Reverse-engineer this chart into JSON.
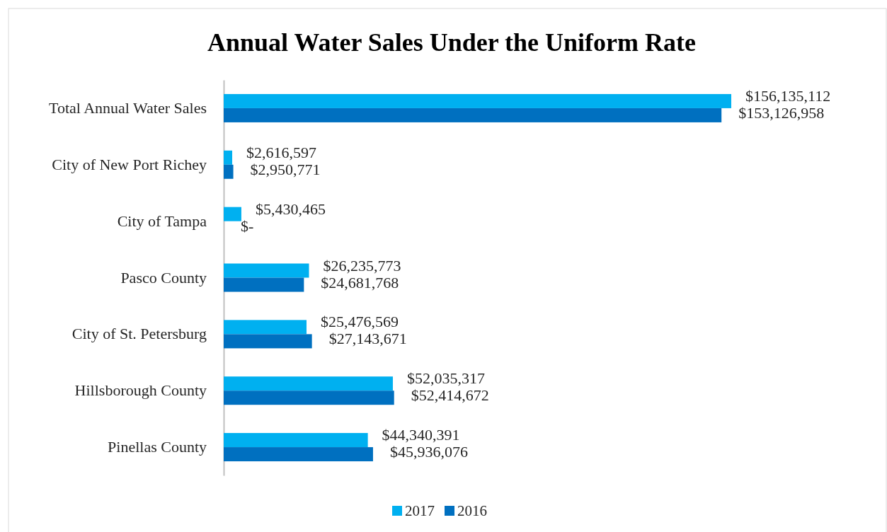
{
  "chart_data": {
    "type": "bar",
    "orientation": "horizontal",
    "title": "Annual Water Sales Under the Uniform Rate",
    "categories": [
      "Total Annual Water Sales",
      "City of New Port Richey",
      "City of Tampa",
      "Pasco County",
      "City of St. Petersburg",
      "Hillsborough County",
      "Pinellas County"
    ],
    "series": [
      {
        "name": "2017",
        "color": "#00b0f0",
        "values": [
          156135112,
          2616597,
          5430465,
          26235773,
          25476569,
          52035317,
          44340391
        ],
        "value_labels": [
          "$156,135,112",
          "$2,616,597",
          "$5,430,465",
          "$26,235,773",
          "$25,476,569",
          "$52,035,317",
          "$44,340,391"
        ]
      },
      {
        "name": "2016",
        "color": "#0070c0",
        "values": [
          153126958,
          2950771,
          0,
          24681768,
          27143671,
          52414672,
          45936076
        ],
        "value_labels": [
          "$153,126,958",
          "$2,950,771",
          "$-",
          "$24,681,768",
          "$27,143,671",
          "$52,414,672",
          "$45,936,076"
        ]
      }
    ],
    "legend": "bottom",
    "grid": false
  }
}
